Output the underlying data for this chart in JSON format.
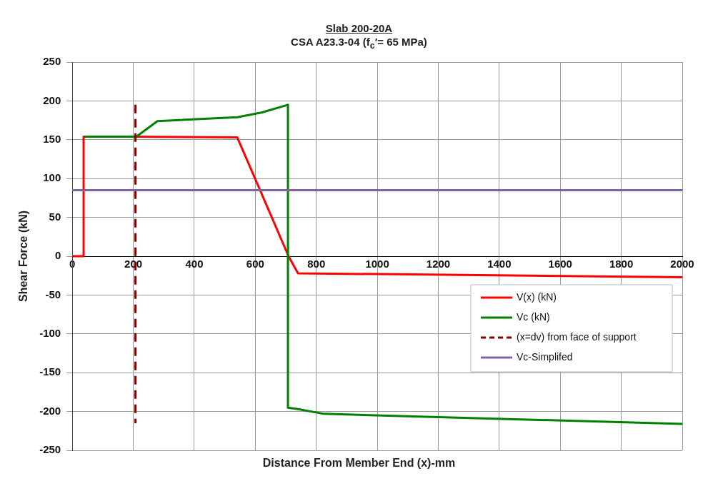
{
  "chart_data": {
    "type": "line",
    "title": "Slab 200-20A",
    "subtitle": "CSA A23.3-04 (f$_{c}$′= 65 MPa)",
    "xlabel": "Distance From Member End (x)-mm",
    "ylabel": "Shear Force (kN)",
    "xlim": [
      0,
      2000
    ],
    "xticks": [
      0,
      200,
      400,
      600,
      800,
      1000,
      1200,
      1400,
      1600,
      1800,
      2000
    ],
    "ylim": [
      -250,
      250
    ],
    "yticks": [
      -250,
      -200,
      -150,
      -100,
      -50,
      0,
      50,
      100,
      150,
      200,
      250
    ],
    "grid": true,
    "legend": "bottom right",
    "marker": "none",
    "series": [
      {
        "name": "V(x) (kN)",
        "color": "#ff0000",
        "x": [
          0,
          37,
          37,
          210,
          541,
          709,
          740,
          2000
        ],
        "values": [
          0,
          0,
          154,
          154,
          153,
          0,
          -22,
          -27
        ]
      },
      {
        "name": "Vc (kN)",
        "color": "#008000",
        "x": [
          37,
          210,
          279,
          541,
          620,
          707,
          707,
          740,
          824,
          2000
        ],
        "values": [
          154,
          154,
          174,
          179,
          185,
          195,
          -195,
          -197,
          -203,
          -216
        ]
      },
      {
        "name": "(x=dv) from face of support",
        "color": "#800000",
        "line_style": "dashed",
        "x": [
          207,
          207
        ],
        "values": [
          195,
          -215
        ]
      },
      {
        "name": "Vc-Simplifed",
        "color": "#8064a2",
        "x": [
          0,
          2000
        ],
        "values": [
          85,
          85
        ]
      }
    ]
  }
}
